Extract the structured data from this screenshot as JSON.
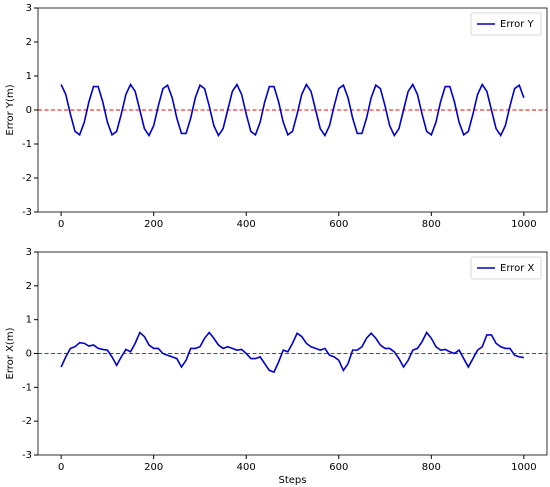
{
  "chart_data": [
    {
      "type": "line",
      "ylabel": "Error Y(m)",
      "xlim": [
        -50,
        1050
      ],
      "ylim": [
        -3,
        3
      ],
      "xticks": [
        0,
        200,
        400,
        600,
        800,
        1000
      ],
      "yticks": [
        -3,
        -2,
        -1,
        0,
        1,
        2,
        3
      ],
      "legend": "upper right",
      "reference_line": {
        "value": 0,
        "color": "#ff0000",
        "style": "dashed"
      },
      "x": [
        0,
        10,
        20,
        30,
        40,
        50,
        60,
        70,
        80,
        90,
        100,
        110,
        120,
        130,
        140,
        150,
        160,
        170,
        180,
        190,
        200,
        210,
        220,
        230,
        240,
        250,
        260,
        270,
        280,
        290,
        300,
        310,
        320,
        330,
        340,
        350,
        360,
        370,
        380,
        390,
        400,
        410,
        420,
        430,
        440,
        450,
        460,
        470,
        480,
        490,
        500,
        510,
        520,
        530,
        540,
        550,
        560,
        570,
        580,
        590,
        600,
        610,
        620,
        630,
        640,
        650,
        660,
        670,
        680,
        690,
        700,
        710,
        720,
        730,
        740,
        750,
        760,
        770,
        780,
        790,
        800,
        810,
        820,
        830,
        840,
        850,
        860,
        870,
        880,
        890,
        900,
        910,
        920,
        930,
        940,
        950,
        960,
        970,
        980,
        990,
        1000
      ],
      "series": [
        {
          "name": "Error Y",
          "color": "#0000cc",
          "values": [
            0.75,
            0.46,
            -0.12,
            -0.63,
            -0.73,
            -0.36,
            0.24,
            0.69,
            0.69,
            0.24,
            -0.36,
            -0.73,
            -0.63,
            -0.12,
            0.46,
            0.75,
            0.55,
            0.0,
            -0.55,
            -0.75,
            -0.46,
            0.12,
            0.63,
            0.73,
            0.36,
            -0.24,
            -0.69,
            -0.69,
            -0.24,
            0.36,
            0.73,
            0.63,
            0.12,
            -0.46,
            -0.75,
            -0.55,
            0.0,
            0.55,
            0.75,
            0.46,
            -0.12,
            -0.63,
            -0.73,
            -0.36,
            0.24,
            0.69,
            0.69,
            0.24,
            -0.36,
            -0.73,
            -0.63,
            -0.12,
            0.46,
            0.75,
            0.55,
            0.0,
            -0.55,
            -0.75,
            -0.46,
            0.12,
            0.63,
            0.73,
            0.36,
            -0.24,
            -0.69,
            -0.69,
            -0.24,
            0.36,
            0.73,
            0.63,
            0.12,
            -0.46,
            -0.75,
            -0.55,
            0.0,
            0.55,
            0.75,
            0.46,
            -0.12,
            -0.63,
            -0.73,
            -0.36,
            0.24,
            0.69,
            0.69,
            0.24,
            -0.36,
            -0.73,
            -0.63,
            -0.12,
            0.46,
            0.75,
            0.55,
            0.0,
            -0.55,
            -0.75,
            -0.46,
            0.12,
            0.63,
            0.73,
            0.36
          ]
        }
      ]
    },
    {
      "type": "line",
      "ylabel": "Error X(m)",
      "xlabel": "Steps",
      "xlim": [
        -50,
        1050
      ],
      "ylim": [
        -3,
        3
      ],
      "xticks": [
        0,
        200,
        400,
        600,
        800,
        1000
      ],
      "yticks": [
        -3,
        -2,
        -1,
        0,
        1,
        2,
        3
      ],
      "legend": "upper right",
      "reference_line": {
        "value": 0,
        "color": "#ff0000",
        "style": "dashed"
      },
      "x": [
        0,
        10,
        20,
        30,
        40,
        50,
        60,
        70,
        80,
        90,
        100,
        110,
        120,
        130,
        140,
        150,
        160,
        170,
        180,
        190,
        200,
        210,
        220,
        230,
        240,
        250,
        260,
        270,
        280,
        290,
        300,
        310,
        320,
        330,
        340,
        350,
        360,
        370,
        380,
        390,
        400,
        410,
        420,
        430,
        440,
        450,
        460,
        470,
        480,
        490,
        500,
        510,
        520,
        530,
        540,
        550,
        560,
        570,
        580,
        590,
        600,
        610,
        620,
        630,
        640,
        650,
        660,
        670,
        680,
        690,
        700,
        710,
        720,
        730,
        740,
        750,
        760,
        770,
        780,
        790,
        800,
        810,
        820,
        830,
        840,
        850,
        860,
        870,
        880,
        890,
        900,
        910,
        920,
        930,
        940,
        950,
        960,
        970,
        980,
        990,
        1000
      ],
      "series": [
        {
          "name": "Error X",
          "color": "#0000cc",
          "values": [
            -0.4,
            -0.1,
            0.15,
            0.2,
            0.32,
            0.3,
            0.22,
            0.25,
            0.15,
            0.12,
            0.1,
            -0.1,
            -0.35,
            -0.1,
            0.12,
            0.05,
            0.3,
            0.62,
            0.5,
            0.25,
            0.15,
            0.15,
            0.0,
            -0.05,
            -0.1,
            -0.15,
            -0.4,
            -0.2,
            0.15,
            0.15,
            0.2,
            0.45,
            0.62,
            0.45,
            0.25,
            0.15,
            0.2,
            0.15,
            0.1,
            0.12,
            0.0,
            -0.15,
            -0.15,
            -0.1,
            -0.3,
            -0.5,
            -0.55,
            -0.25,
            0.1,
            0.05,
            0.3,
            0.6,
            0.5,
            0.3,
            0.2,
            0.15,
            0.1,
            0.15,
            -0.05,
            -0.1,
            -0.2,
            -0.5,
            -0.3,
            0.1,
            0.1,
            0.2,
            0.45,
            0.6,
            0.45,
            0.25,
            0.15,
            0.15,
            0.05,
            -0.15,
            -0.4,
            -0.2,
            0.1,
            0.15,
            0.35,
            0.62,
            0.45,
            0.2,
            0.1,
            0.12,
            0.05,
            0.0,
            0.1,
            -0.15,
            -0.4,
            -0.15,
            0.1,
            0.2,
            0.55,
            0.55,
            0.3,
            0.2,
            0.15,
            0.15,
            -0.05,
            -0.1,
            -0.12
          ]
        }
      ]
    }
  ]
}
